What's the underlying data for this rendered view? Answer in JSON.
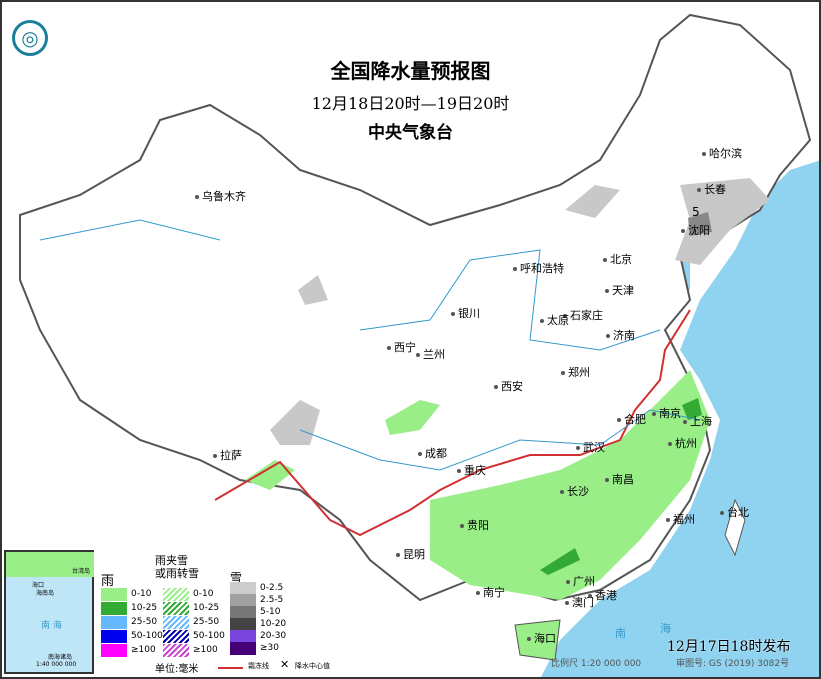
{
  "header": {
    "title": "全国降水量预报图",
    "period": "12月18日20时—19日20时",
    "agency": "中央气象台"
  },
  "cities": [
    "乌鲁木齐",
    "哈尔滨",
    "长春",
    "沈阳",
    "呼和浩特",
    "北京",
    "天津",
    "石家庄",
    "太原",
    "济南",
    "银川",
    "西宁",
    "兰州",
    "西安",
    "郑州",
    "合肥",
    "南京",
    "上海",
    "杭州",
    "武汉",
    "成都",
    "重庆",
    "拉萨",
    "长沙",
    "南昌",
    "贵阳",
    "福州",
    "台北",
    "昆明",
    "南宁",
    "广州",
    "澳门",
    "香港",
    "海口"
  ],
  "center_value": "5",
  "sea_labels": {
    "south_sea_1": "南",
    "south_sea_2": "海"
  },
  "inset": {
    "sea": "南 海",
    "title": "南海诸岛",
    "scale": "1:40 000 000",
    "haikou": "海口",
    "hainan": "海南岛",
    "taiwan": "台湾岛"
  },
  "legend": {
    "rain": {
      "title": "雨",
      "items": [
        {
          "label": "0-10",
          "color": "#99ee88"
        },
        {
          "label": "10-25",
          "color": "#33aa33"
        },
        {
          "label": "25-50",
          "color": "#66b8ff"
        },
        {
          "label": "50-100",
          "color": "#0000ee"
        },
        {
          "label": "≥100",
          "color": "#ff00ff"
        }
      ]
    },
    "mixed": {
      "title_1": "雨夹雪",
      "title_2": "或雨转雪",
      "items": [
        {
          "label": "0-10",
          "color": "#99ee88"
        },
        {
          "label": "10-25",
          "color": "#33aa33"
        },
        {
          "label": "25-50",
          "color": "#66b8ff"
        },
        {
          "label": "50-100",
          "color": "#0000aa"
        },
        {
          "label": "≥100",
          "color": "#cc44cc"
        }
      ]
    },
    "snow": {
      "title": "雪",
      "items": [
        {
          "label": "0-2.5",
          "color": "#cccccc"
        },
        {
          "label": "2.5-5",
          "color": "#a0a0a0"
        },
        {
          "label": "5-10",
          "color": "#777777"
        },
        {
          "label": "10-20",
          "color": "#444444"
        },
        {
          "label": "20-30",
          "color": "#7744dd"
        },
        {
          "label": "≥30",
          "color": "#440077"
        }
      ]
    },
    "unit": "单位:毫米",
    "line_label": "霜冻线",
    "center_label": "降水中心值"
  },
  "footer": {
    "issued": "12月17日18时发布",
    "scale": "比例尺 1:20 000 000",
    "review": "审图号: GS (2019) 3082号"
  },
  "colors": {
    "sea": "#8fd3f0",
    "rain_light": "#99ee88",
    "snow_light": "#c8c8c8",
    "front": "#d03030"
  }
}
